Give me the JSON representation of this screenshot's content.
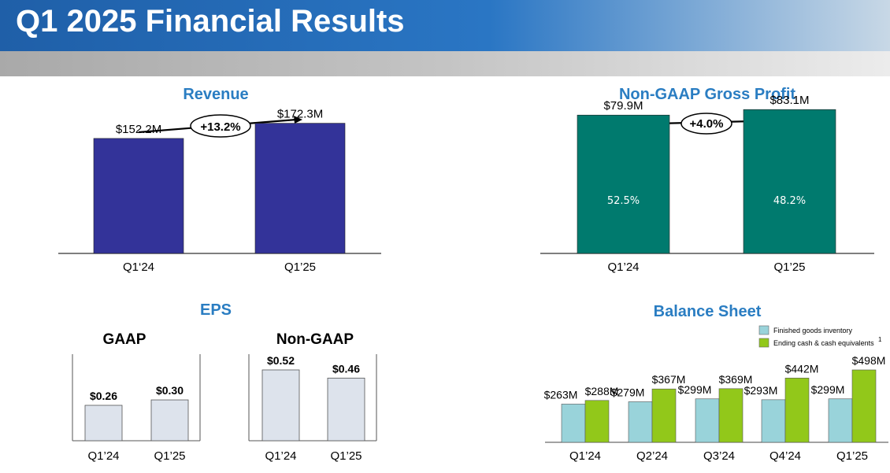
{
  "header": {
    "title": "Q1 2025 Financial Results"
  },
  "colors": {
    "revenue": "#333399",
    "gross_profit": "#007a6e",
    "eps_bar": "#dde3ec",
    "inventory": "#99d3da",
    "cash": "#92c81a",
    "title_blue": "#2a7dc2"
  },
  "chart_data": [
    {
      "id": "revenue",
      "type": "bar",
      "title": "Revenue",
      "categories": [
        "Q1‘24",
        "Q1’25"
      ],
      "values": [
        152.2,
        172.3
      ],
      "value_labels": [
        "$152.2M",
        "$172.3M"
      ],
      "growth_label": "+13.2%",
      "ylim": [
        0,
        200
      ]
    },
    {
      "id": "gross_profit",
      "type": "bar",
      "title": "Non-GAAP Gross Profit",
      "categories": [
        "Q1’24",
        "Q1’25"
      ],
      "values": [
        79.9,
        83.1
      ],
      "value_labels": [
        "$79.9M",
        "$83.1M"
      ],
      "inner_labels": [
        "52.5%",
        "48.2%"
      ],
      "growth_label": "+4.0%",
      "ylim": [
        0,
        100
      ]
    },
    {
      "id": "eps",
      "type": "bar",
      "title": "EPS",
      "groups": [
        {
          "name": "GAAP",
          "categories": [
            "Q1’24",
            "Q1’25"
          ],
          "values": [
            0.26,
            0.3
          ],
          "value_labels": [
            "$0.26",
            "$0.30"
          ]
        },
        {
          "name": "Non-GAAP",
          "categories": [
            "Q1’24",
            "Q1’25"
          ],
          "values": [
            0.52,
            0.46
          ],
          "value_labels": [
            "$0.52",
            "$0.46"
          ]
        }
      ]
    },
    {
      "id": "balance_sheet",
      "type": "bar",
      "title": "Balance Sheet",
      "categories": [
        "Q1’24",
        "Q2’24",
        "Q3’24",
        "Q4’24",
        "Q1’25"
      ],
      "series": [
        {
          "name": "Finished goods inventory",
          "values": [
            263,
            279,
            299,
            293,
            299
          ],
          "value_labels": [
            "$263M",
            "$279M",
            "$299M",
            "$293M",
            "$299M"
          ]
        },
        {
          "name": "Ending cash & cash equivalents",
          "footnote": "1",
          "values": [
            288,
            367,
            369,
            442,
            498
          ],
          "value_labels": [
            "$288M",
            "$367M",
            "$369M",
            "$442M",
            "$498M"
          ]
        }
      ],
      "legend": "top-right",
      "ylim": [
        0,
        560
      ]
    }
  ]
}
